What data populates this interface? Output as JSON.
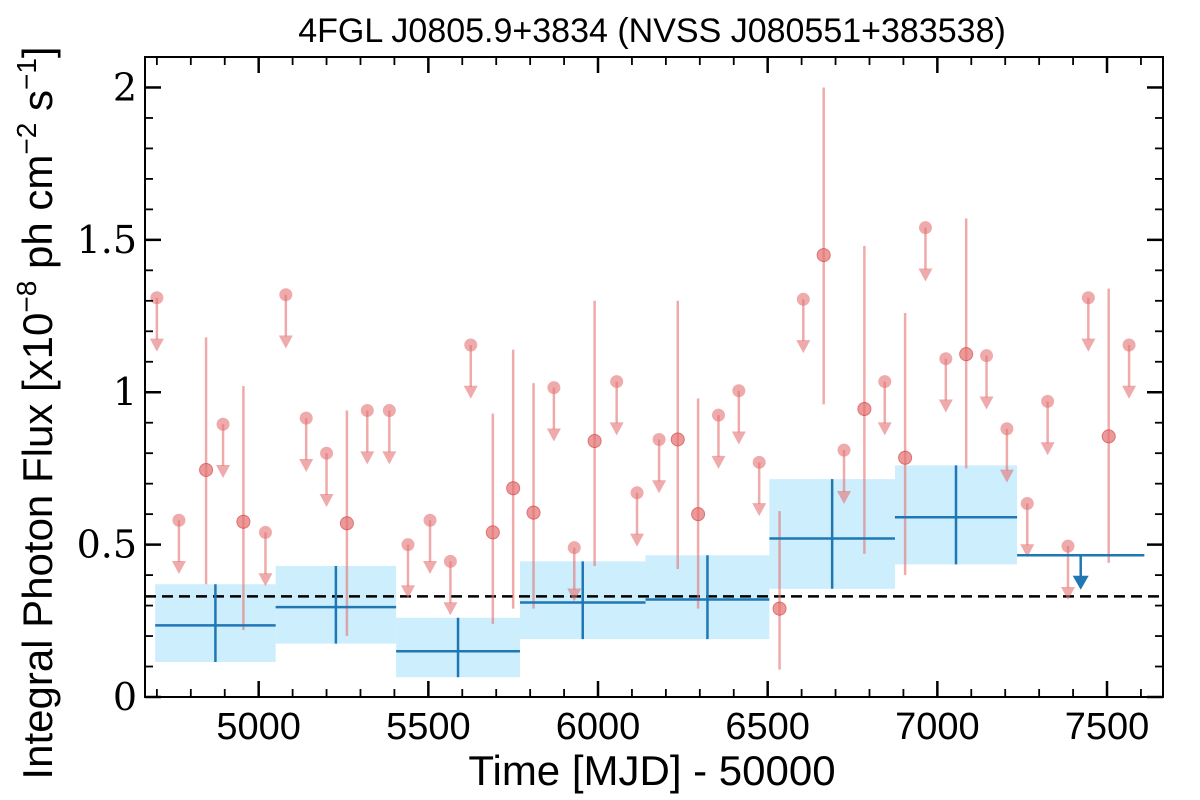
{
  "chart_data": {
    "type": "scatter",
    "title": "4FGL J0805.9+3834 (NVSS J080551+383538)",
    "xlabel": "Time [MJD] - 50000",
    "ylabel": "Integral Photon Flux [x10^-8 ph cm^-2 s^-1]",
    "ylabel_parts": {
      "prefix": "Integral Photon Flux [x10",
      "exp1": "−8",
      "mid": " ph cm",
      "exp2": "−2",
      "mid2": " s",
      "exp3": "−1",
      "suffix": "]"
    },
    "xlim": [
      4665,
      7665
    ],
    "ylim": [
      0,
      2.1
    ],
    "xticks": [
      5000,
      5500,
      6000,
      6500,
      7000,
      7500
    ],
    "yticks": [
      0,
      0.5,
      1,
      1.5,
      2
    ],
    "ytick_labels": [
      "0",
      "0.5",
      "1",
      "1.5",
      "2"
    ],
    "mean_flux": 0.33,
    "colors": {
      "points": "#e57373",
      "bins": "#1f77b4",
      "bin_band": "#cdeefd",
      "mean_line": "#000000"
    },
    "series": [
      {
        "kind": "measurements",
        "points": [
          {
            "x": 4845,
            "y": 0.745,
            "lo": 0.37,
            "hi": 1.18
          },
          {
            "x": 4955,
            "y": 0.575,
            "lo": 0.22,
            "hi": 1.02
          },
          {
            "x": 5260,
            "y": 0.57,
            "lo": 0.2,
            "hi": 0.94
          },
          {
            "x": 5690,
            "y": 0.54,
            "lo": 0.24,
            "hi": 0.93
          },
          {
            "x": 5750,
            "y": 0.685,
            "lo": 0.29,
            "hi": 1.14
          },
          {
            "x": 5810,
            "y": 0.605,
            "lo": 0.29,
            "hi": 1.03
          },
          {
            "x": 5990,
            "y": 0.84,
            "lo": 0.43,
            "hi": 1.3
          },
          {
            "x": 6235,
            "y": 0.845,
            "lo": 0.42,
            "hi": 1.3
          },
          {
            "x": 6295,
            "y": 0.6,
            "lo": 0.29,
            "hi": 0.98
          },
          {
            "x": 6535,
            "y": 0.29,
            "lo": 0.09,
            "hi": 0.61
          },
          {
            "x": 6665,
            "y": 1.45,
            "lo": 0.96,
            "hi": 2.0
          },
          {
            "x": 6785,
            "y": 0.945,
            "lo": 0.47,
            "hi": 1.48
          },
          {
            "x": 6905,
            "y": 0.785,
            "lo": 0.4,
            "hi": 1.26
          },
          {
            "x": 7085,
            "y": 1.125,
            "lo": 0.75,
            "hi": 1.57
          },
          {
            "x": 7505,
            "y": 0.855,
            "lo": 0.44,
            "hi": 1.34
          }
        ]
      },
      {
        "kind": "upper_limits",
        "points": [
          {
            "x": 4700,
            "y": 1.31
          },
          {
            "x": 4765,
            "y": 0.58
          },
          {
            "x": 4895,
            "y": 0.895
          },
          {
            "x": 5020,
            "y": 0.54
          },
          {
            "x": 5080,
            "y": 1.32
          },
          {
            "x": 5140,
            "y": 0.915
          },
          {
            "x": 5200,
            "y": 0.8
          },
          {
            "x": 5320,
            "y": 0.94
          },
          {
            "x": 5385,
            "y": 0.94
          },
          {
            "x": 5440,
            "y": 0.5
          },
          {
            "x": 5505,
            "y": 0.58
          },
          {
            "x": 5565,
            "y": 0.445
          },
          {
            "x": 5625,
            "y": 1.155
          },
          {
            "x": 5870,
            "y": 1.015
          },
          {
            "x": 5930,
            "y": 0.49
          },
          {
            "x": 6055,
            "y": 1.035
          },
          {
            "x": 6115,
            "y": 0.67
          },
          {
            "x": 6180,
            "y": 0.845
          },
          {
            "x": 6355,
            "y": 0.925
          },
          {
            "x": 6415,
            "y": 1.005
          },
          {
            "x": 6475,
            "y": 0.77
          },
          {
            "x": 6605,
            "y": 1.305
          },
          {
            "x": 6725,
            "y": 0.81
          },
          {
            "x": 6845,
            "y": 1.035
          },
          {
            "x": 6965,
            "y": 1.54
          },
          {
            "x": 7025,
            "y": 1.11
          },
          {
            "x": 7145,
            "y": 1.12
          },
          {
            "x": 7205,
            "y": 0.88
          },
          {
            "x": 7265,
            "y": 0.635
          },
          {
            "x": 7325,
            "y": 0.97
          },
          {
            "x": 7385,
            "y": 0.495
          },
          {
            "x": 7445,
            "y": 1.31
          },
          {
            "x": 7565,
            "y": 1.155
          }
        ]
      },
      {
        "kind": "binned",
        "bins": [
          {
            "x0": 4695,
            "x1": 5050,
            "y": 0.235,
            "lo": 0.115,
            "hi": 0.37
          },
          {
            "x0": 5050,
            "x1": 5405,
            "y": 0.295,
            "lo": 0.175,
            "hi": 0.43
          },
          {
            "x0": 5405,
            "x1": 5770,
            "y": 0.15,
            "lo": 0.065,
            "hi": 0.26
          },
          {
            "x0": 5770,
            "x1": 6140,
            "y": 0.31,
            "lo": 0.19,
            "hi": 0.445
          },
          {
            "x0": 6140,
            "x1": 6505,
            "y": 0.32,
            "lo": 0.19,
            "hi": 0.465
          },
          {
            "x0": 6505,
            "x1": 6875,
            "y": 0.52,
            "lo": 0.355,
            "hi": 0.715
          },
          {
            "x0": 6875,
            "x1": 7235,
            "y": 0.59,
            "lo": 0.435,
            "hi": 0.76
          }
        ],
        "upper_limit_bins": [
          {
            "x0": 7235,
            "x1": 7610,
            "y": 0.465
          }
        ]
      }
    ]
  }
}
